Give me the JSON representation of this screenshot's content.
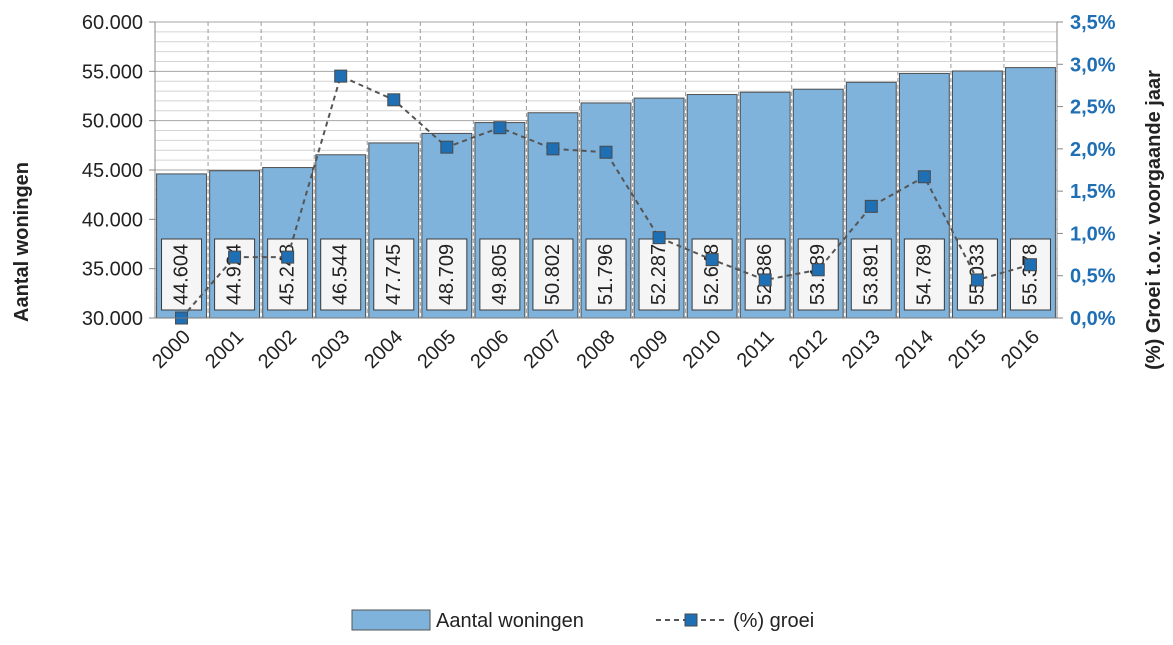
{
  "chart_data": {
    "type": "bar",
    "categories": [
      "2000",
      "2001",
      "2002",
      "2003",
      "2004",
      "2005",
      "2006",
      "2007",
      "2008",
      "2009",
      "2010",
      "2011",
      "2012",
      "2013",
      "2014",
      "2015",
      "2016"
    ],
    "series": [
      {
        "name": "Aantal woningen",
        "type": "bar",
        "axis": "left",
        "color": "#7fb3dc",
        "values": [
          44604,
          44924,
          45248,
          46544,
          47745,
          48709,
          49805,
          50802,
          51796,
          52287,
          52648,
          52886,
          53189,
          53891,
          54789,
          55033,
          55378
        ],
        "labels": [
          "44.604",
          "44.924",
          "45.248",
          "46.544",
          "47.745",
          "48.709",
          "49.805",
          "50.802",
          "51.796",
          "52.287",
          "52.648",
          "52.886",
          "53.189",
          "53.891",
          "54.789",
          "55.033",
          "55.378"
        ]
      },
      {
        "name": "(%) groei",
        "type": "line",
        "axis": "right",
        "color": "#1f6fb5",
        "line_color": "#555555",
        "values": [
          0.0,
          0.72,
          0.72,
          2.86,
          2.58,
          2.02,
          2.25,
          2.0,
          1.96,
          0.95,
          0.69,
          0.45,
          0.57,
          1.32,
          1.67,
          0.45,
          0.63
        ]
      }
    ],
    "xlabel": "",
    "ylabel": "Aantal woningen",
    "y2label": "(%) Groei t.o.v. voorgaande jaar",
    "ylim": [
      30000,
      60000
    ],
    "y2lim": [
      0,
      3.5
    ],
    "yticks": [
      "30.000",
      "35.000",
      "40.000",
      "45.000",
      "50.000",
      "55.000",
      "60.000"
    ],
    "y2ticks": [
      "0,0%",
      "0,5%",
      "1,0%",
      "1,5%",
      "2,0%",
      "2,5%",
      "3,0%",
      "3,5%"
    ],
    "grid": true,
    "legend": "bottom"
  }
}
